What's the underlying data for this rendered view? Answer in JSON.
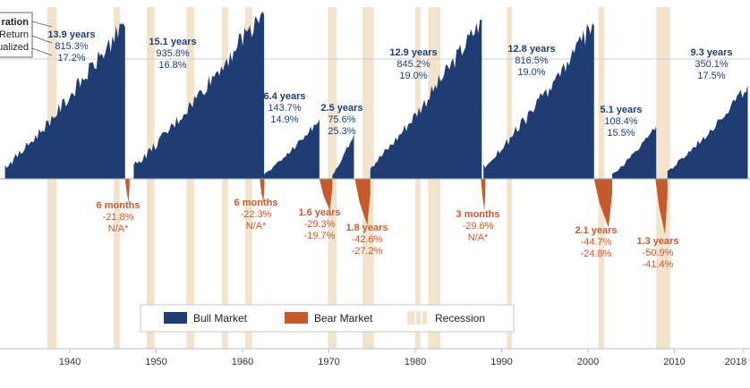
{
  "chart_data": {
    "type": "area",
    "title": "",
    "xlabel": "",
    "ylabel": "",
    "xlim": [
      1935,
      2018
    ],
    "x_ticks": [
      "1940",
      "1950",
      "1960",
      "1970",
      "1980",
      "1990",
      "2000",
      "2010",
      "2018"
    ],
    "legend": {
      "position": "bottom-center",
      "items": [
        "Bull Market",
        "Bear Market",
        "Recession"
      ]
    },
    "key_box": [
      "ration",
      "Return",
      "ualized"
    ],
    "colors": {
      "bull": "#1f3d73",
      "bear": "#c65a2c",
      "recession": "#f2e3cc",
      "axis": "#9aa3b0"
    },
    "recessions": [
      [
        1937.4,
        1938.5
      ],
      [
        1945.1,
        1945.8
      ],
      [
        1948.9,
        1949.8
      ],
      [
        1953.5,
        1954.4
      ],
      [
        1957.6,
        1958.3
      ],
      [
        1960.3,
        1961.1
      ],
      [
        1969.9,
        1970.9
      ],
      [
        1973.9,
        1975.2
      ],
      [
        1980.0,
        1980.6
      ],
      [
        1981.5,
        1982.9
      ],
      [
        1990.6,
        1991.2
      ],
      [
        2001.2,
        2001.9
      ],
      [
        2007.9,
        2009.5
      ]
    ],
    "bull_markets": [
      {
        "start": 1932.5,
        "end": 1946.4,
        "duration": "13.9 years",
        "total_return": "815.3%",
        "annualized": "17.2%",
        "return_value": 815.3
      },
      {
        "start": 1947.4,
        "end": 1962.5,
        "duration": "15.1 years",
        "total_return": "935.8%",
        "annualized": "16.8%",
        "return_value": 935.8
      },
      {
        "start": 1962.5,
        "end": 1968.9,
        "duration": "6.4 years",
        "total_return": "143.7%",
        "annualized": "14.9%",
        "return_value": 143.7
      },
      {
        "start": 1970.4,
        "end": 1972.9,
        "duration": "2.5 years",
        "total_return": "75.6%",
        "annualized": "25.3%",
        "return_value": 75.6
      },
      {
        "start": 1974.8,
        "end": 1987.7,
        "duration": "12.9 years",
        "total_return": "845.2%",
        "annualized": "19.0%",
        "return_value": 845.2
      },
      {
        "start": 1987.9,
        "end": 2000.7,
        "duration": "12.8 years",
        "total_return": "816.5%",
        "annualized": "19.0%",
        "return_value": 816.5
      },
      {
        "start": 2002.8,
        "end": 2007.9,
        "duration": "5.1 years",
        "total_return": "108.4%",
        "annualized": "15.5%",
        "return_value": 108.4
      },
      {
        "start": 2009.2,
        "end": 2018.5,
        "duration": "9.3 years",
        "total_return": "350.1%",
        "annualized": "17.5%",
        "return_value": 350.1
      }
    ],
    "bear_markets": [
      {
        "start": 1946.4,
        "end": 1946.9,
        "duration": "6 months",
        "total_return": "-21.8%",
        "annualized": "N/A*",
        "return_value": -21.8
      },
      {
        "start": 1962.0,
        "end": 1962.5,
        "duration": "6 months",
        "total_return": "-22.3%",
        "annualized": "N/A*",
        "return_value": -22.3
      },
      {
        "start": 1968.9,
        "end": 1970.4,
        "duration": "1.6 years",
        "total_return": "-29.3%",
        "annualized": "-19.7%",
        "return_value": -29.3
      },
      {
        "start": 1973.0,
        "end": 1974.8,
        "duration": "1.8 years",
        "total_return": "-42.6%",
        "annualized": "-27.2%",
        "return_value": -42.6
      },
      {
        "start": 1987.6,
        "end": 1987.9,
        "duration": "3 months",
        "total_return": "-29.6%",
        "annualized": "N/A*",
        "return_value": -29.6
      },
      {
        "start": 2000.7,
        "end": 2002.8,
        "duration": "2.1 years",
        "total_return": "-44.7%",
        "annualized": "-24.8%",
        "return_value": -44.7
      },
      {
        "start": 2007.8,
        "end": 2009.2,
        "duration": "1.3 years",
        "total_return": "-50.9%",
        "annualized": "-41.4%",
        "return_value": -50.9
      }
    ]
  }
}
